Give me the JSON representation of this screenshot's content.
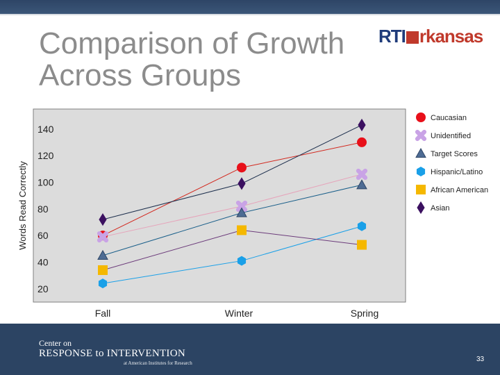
{
  "slide": {
    "title_line1": "Comparison of Growth",
    "title_line2": "Across Groups",
    "logo_left": "RTI",
    "logo_right": "rkansas",
    "footer_line1": "Center on",
    "footer_line2": "RESPONSE to INTERVENTION",
    "footer_line3": "at American Institutes for Research",
    "page_number": "33"
  },
  "chart_data": {
    "type": "line",
    "title": "",
    "xlabel": "",
    "ylabel": "Words Read Correctly",
    "categories": [
      "Fall",
      "Winter",
      "Spring"
    ],
    "ylim": [
      10,
      155
    ],
    "yticks": [
      20,
      40,
      60,
      80,
      100,
      120,
      140
    ],
    "legend_position": "right",
    "series": [
      {
        "name": "Caucasian",
        "values": [
          60,
          111,
          130
        ],
        "color": "#e8101a",
        "marker": "circle"
      },
      {
        "name": "Unidentified",
        "values": [
          59,
          82,
          106
        ],
        "color": "#c9a3e6",
        "marker": "cross"
      },
      {
        "name": "Target Scores",
        "values": [
          45,
          77,
          98
        ],
        "color": "#4e6c94",
        "marker": "triangle"
      },
      {
        "name": "Hispanic/Latino",
        "values": [
          24,
          41,
          67
        ],
        "color": "#1aa0e8",
        "marker": "hexagon"
      },
      {
        "name": "African American",
        "values": [
          34,
          64,
          53
        ],
        "color": "#f5b800",
        "marker": "square"
      },
      {
        "name": "Asian",
        "values": [
          72,
          99,
          143
        ],
        "color": "#3b1060",
        "marker": "diamond"
      }
    ],
    "line_colors": [
      "#d2261c",
      "#e6a3ba",
      "#1a5f8a",
      "#1aa0e8",
      "#6b3a7a",
      "#1d2f4d"
    ]
  }
}
